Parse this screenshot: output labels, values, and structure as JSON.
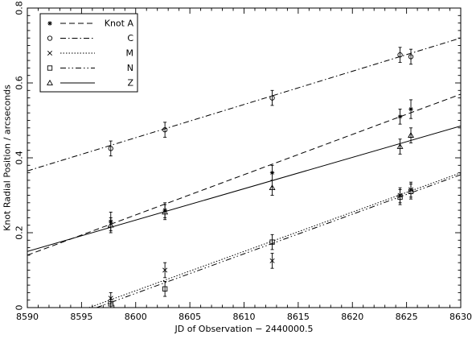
{
  "chart_data": {
    "type": "scatter",
    "title": "",
    "xlabel": "JD of Observation − 2440000.5",
    "ylabel": "Knot Radial Position / arcseconds",
    "xlim": [
      8590,
      8630
    ],
    "ylim": [
      0,
      0.8
    ],
    "xticks": [
      8590,
      8595,
      8600,
      8605,
      8610,
      8615,
      8620,
      8625,
      8630
    ],
    "yticks": [
      0,
      0.2,
      0.4,
      0.6,
      0.8
    ],
    "xtick_labels": [
      "8590",
      "8595",
      "8600",
      "8605",
      "8610",
      "8615",
      "8620",
      "8625",
      "8630"
    ],
    "ytick_labels": [
      "0",
      "0.2",
      "0.4",
      "0.6",
      "0.8"
    ],
    "grid": false,
    "legend_position": "top-left",
    "series": [
      {
        "name": "Knot A",
        "marker": "star",
        "line": "dashed",
        "points": [
          {
            "x": 8597.7,
            "y": 0.23,
            "err": 0.025
          },
          {
            "x": 8602.7,
            "y": 0.26,
            "err": 0.02
          },
          {
            "x": 8612.6,
            "y": 0.36,
            "err": 0.02
          },
          {
            "x": 8624.4,
            "y": 0.51,
            "err": 0.02
          },
          {
            "x": 8625.4,
            "y": 0.53,
            "err": 0.025
          }
        ],
        "fit": [
          [
            8590,
            0.14
          ],
          [
            8630,
            0.57
          ]
        ]
      },
      {
        "name": "C",
        "marker": "circle",
        "line": "dashdot",
        "points": [
          {
            "x": 8597.7,
            "y": 0.425,
            "err": 0.02
          },
          {
            "x": 8602.7,
            "y": 0.475,
            "err": 0.02
          },
          {
            "x": 8612.6,
            "y": 0.56,
            "err": 0.02
          },
          {
            "x": 8624.4,
            "y": 0.675,
            "err": 0.02
          },
          {
            "x": 8625.4,
            "y": 0.67,
            "err": 0.02
          }
        ],
        "fit": [
          [
            8590,
            0.365
          ],
          [
            8630,
            0.72
          ]
        ]
      },
      {
        "name": "M",
        "marker": "cross",
        "line": "dotted",
        "points": [
          {
            "x": 8597.7,
            "y": 0.025,
            "err": 0.015
          },
          {
            "x": 8602.7,
            "y": 0.1,
            "err": 0.02
          },
          {
            "x": 8612.6,
            "y": 0.125,
            "err": 0.02
          },
          {
            "x": 8624.4,
            "y": 0.3,
            "err": 0.02
          },
          {
            "x": 8625.4,
            "y": 0.315,
            "err": 0.02
          }
        ],
        "fit": [
          [
            8595.7,
            0
          ],
          [
            8630,
            0.36
          ]
        ]
      },
      {
        "name": "N",
        "marker": "square",
        "line": "dashdotdot",
        "points": [
          {
            "x": 8597.7,
            "y": 0.01,
            "err": 0.012
          },
          {
            "x": 8602.7,
            "y": 0.05,
            "err": 0.02
          },
          {
            "x": 8612.6,
            "y": 0.175,
            "err": 0.02
          },
          {
            "x": 8624.4,
            "y": 0.295,
            "err": 0.02
          },
          {
            "x": 8625.4,
            "y": 0.31,
            "err": 0.02
          }
        ],
        "fit": [
          [
            8596.4,
            0
          ],
          [
            8630,
            0.355
          ]
        ]
      },
      {
        "name": "Z",
        "marker": "triangle",
        "line": "solid",
        "points": [
          {
            "x": 8597.7,
            "y": 0.22,
            "err": 0.02
          },
          {
            "x": 8602.7,
            "y": 0.255,
            "err": 0.02
          },
          {
            "x": 8612.6,
            "y": 0.32,
            "err": 0.02
          },
          {
            "x": 8624.4,
            "y": 0.43,
            "err": 0.02
          },
          {
            "x": 8625.4,
            "y": 0.46,
            "err": 0.02
          }
        ],
        "fit": [
          [
            8590,
            0.15
          ],
          [
            8630,
            0.485
          ]
        ]
      }
    ]
  }
}
